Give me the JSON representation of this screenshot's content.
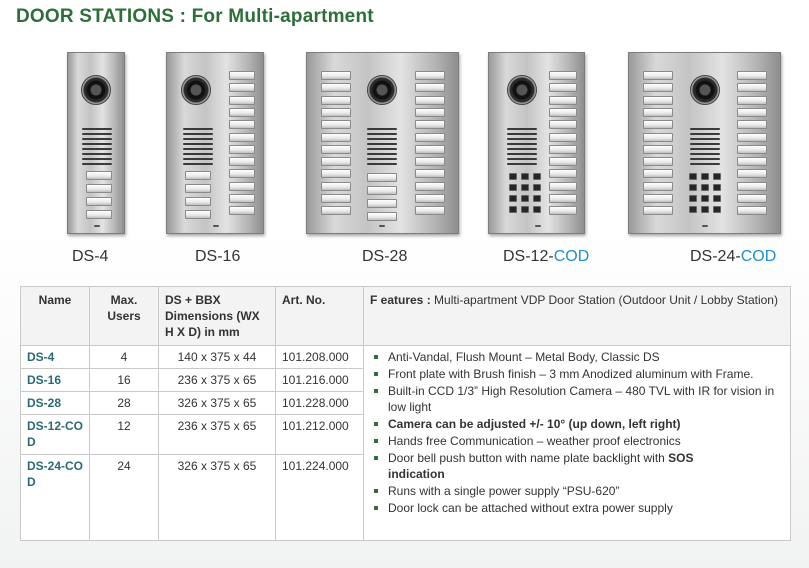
{
  "title": "DOOR STATIONS : For Multi-apartment",
  "products": [
    {
      "model": "DS-4",
      "suffix": ""
    },
    {
      "model": "DS-16",
      "suffix": ""
    },
    {
      "model": "DS-28",
      "suffix": ""
    },
    {
      "model": "DS-12-",
      "suffix": "COD"
    },
    {
      "model": "DS-24-",
      "suffix": "COD"
    }
  ],
  "colors": {
    "title": "#2e6e3a",
    "cod": "#1e90c8",
    "name_column": "#2a6a76"
  },
  "table": {
    "headers": {
      "name": "Name",
      "users": "Max. Users",
      "dims": "DS + BBX Dimensions (WX H X D)  in mm",
      "art": "Art. No.",
      "feat_prefix": "F eatures  :",
      "feat_text": " Multi-apartment VDP Door Station (Outdoor Unit / Lobby Station)"
    },
    "rows": [
      {
        "name": "DS-4",
        "users": "4",
        "dims": "140 x 375 x 44",
        "art": "101.208.000"
      },
      {
        "name": "DS-16",
        "users": "16",
        "dims": "236 x 375 x 65",
        "art": "101.216.000"
      },
      {
        "name": "DS-28",
        "users": "28",
        "dims": "326 x 375 x 65",
        "art": "101.228.000"
      },
      {
        "name": "DS-12-COD",
        "users": "12",
        "dims": "236 x 375 x 65",
        "art": "101.212.000"
      },
      {
        "name": "DS-24-COD",
        "users": "24",
        "dims": "326 x 375  x 65",
        "art": "101.224.000"
      }
    ],
    "features": [
      "Anti-Vandal, Flush Mount – Metal Body, Classic DS",
      "Front plate with Brush finish – 3 mm Anodized aluminum with Frame.",
      "Built-in  CCD 1/3” High Resolution Camera – 480 TVL with IR for vision in low light",
      "Camera can be adjusted +/-  10° (up down, left right)",
      "Hands free Communication – weather proof electronics",
      "Door bell push button with name plate backlight with ",
      "Runs with a single power supply “PSU-620”",
      "Door lock can be attached without extra power supply"
    ],
    "feature_sos": "SOS",
    "feature_sos_tail": "indication"
  }
}
